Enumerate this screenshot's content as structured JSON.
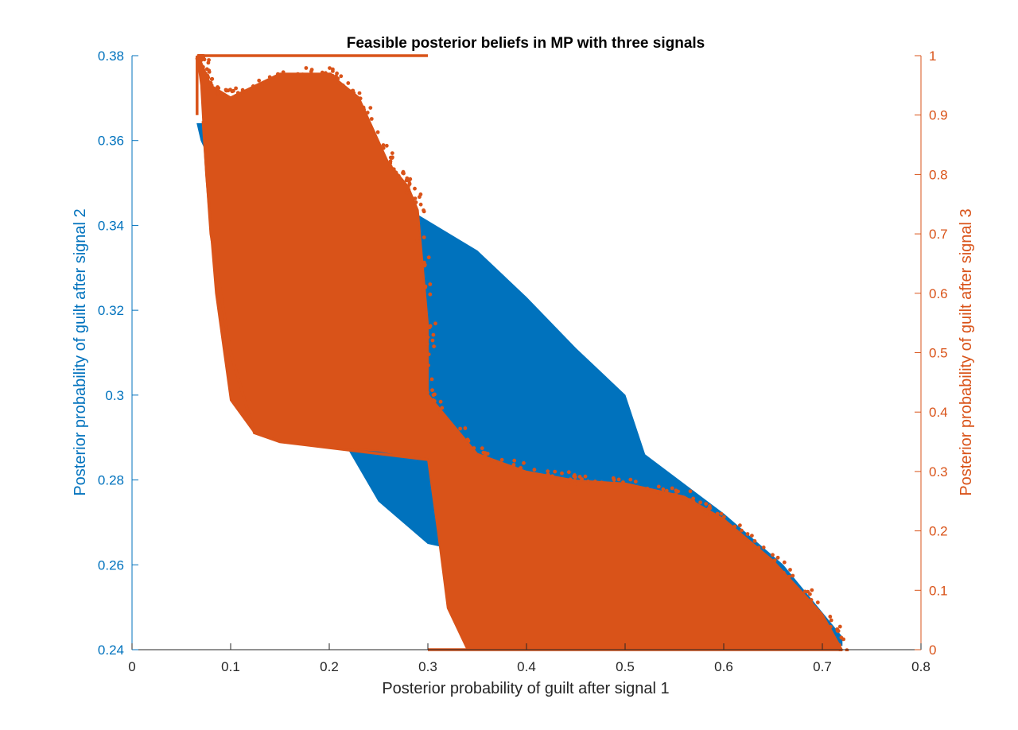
{
  "chart_data": {
    "type": "scatter",
    "title": "Feasible posterior beliefs in MP with three signals",
    "xlabel": "Posterior probability of guilt after signal 1",
    "ylabel_left": "Posterior probability of guilt after signal 2",
    "ylabel_right": "Posterior probability of guilt after signal 3",
    "xlim": [
      0,
      0.8
    ],
    "ylim_left": [
      0.24,
      0.38
    ],
    "ylim_right": [
      0,
      1
    ],
    "x_ticks": [
      "0",
      "0.1",
      "0.2",
      "0.3",
      "0.4",
      "0.5",
      "0.6",
      "0.7",
      "0.8"
    ],
    "y_left_ticks": [
      "0.24",
      "0.26",
      "0.28",
      "0.3",
      "0.32",
      "0.34",
      "0.36",
      "0.38"
    ],
    "y_right_ticks": [
      "0",
      "0.1",
      "0.2",
      "0.3",
      "0.4",
      "0.5",
      "0.6",
      "0.7",
      "0.8",
      "0.9",
      "1"
    ],
    "grid": false,
    "colors": {
      "series_left": "#0072BD",
      "series_right": "#D95319",
      "axis": "#262626"
    },
    "series": [
      {
        "axis": "left",
        "color": "#0072BD",
        "region_outline": [
          [
            0.066,
            0.364
          ],
          [
            0.12,
            0.364
          ],
          [
            0.2,
            0.355
          ],
          [
            0.3,
            0.341
          ],
          [
            0.35,
            0.334
          ],
          [
            0.4,
            0.323
          ],
          [
            0.45,
            0.311
          ],
          [
            0.5,
            0.3
          ],
          [
            0.52,
            0.286
          ],
          [
            0.6,
            0.272
          ],
          [
            0.66,
            0.26
          ],
          [
            0.72,
            0.243
          ],
          [
            0.72,
            0.241
          ],
          [
            0.65,
            0.245
          ],
          [
            0.6,
            0.249
          ],
          [
            0.55,
            0.252
          ],
          [
            0.5,
            0.255
          ],
          [
            0.45,
            0.258
          ],
          [
            0.4,
            0.26
          ],
          [
            0.3,
            0.265
          ],
          [
            0.25,
            0.275
          ],
          [
            0.2,
            0.295
          ],
          [
            0.15,
            0.322
          ],
          [
            0.1,
            0.345
          ],
          [
            0.07,
            0.36
          ]
        ]
      },
      {
        "axis": "right",
        "color": "#D95319",
        "upper_envelope": [
          [
            0.066,
            1
          ],
          [
            0.07,
            0.99
          ],
          [
            0.08,
            0.95
          ],
          [
            0.1,
            0.93
          ],
          [
            0.15,
            0.97
          ],
          [
            0.2,
            0.97
          ],
          [
            0.23,
            0.93
          ],
          [
            0.26,
            0.82
          ],
          [
            0.28,
            0.78
          ],
          [
            0.29,
            0.74
          ],
          [
            0.3,
            0.55
          ],
          [
            0.3,
            0.43
          ],
          [
            0.35,
            0.33
          ],
          [
            0.4,
            0.3
          ],
          [
            0.45,
            0.285
          ],
          [
            0.5,
            0.28
          ],
          [
            0.56,
            0.258
          ],
          [
            0.6,
            0.22
          ],
          [
            0.65,
            0.15
          ],
          [
            0.7,
            0.06
          ],
          [
            0.72,
            0
          ]
        ],
        "lower_envelope": [
          [
            0.72,
            0
          ],
          [
            0.6,
            0.0
          ],
          [
            0.4,
            0.0
          ],
          [
            0.34,
            0.0
          ],
          [
            0.32,
            0.07
          ],
          [
            0.31,
            0.2
          ],
          [
            0.3,
            0.32
          ],
          [
            0.25,
            0.335
          ],
          [
            0.2,
            0.34
          ],
          [
            0.15,
            0.35
          ],
          [
            0.124,
            0.365
          ],
          [
            0.1,
            0.42
          ],
          [
            0.085,
            0.6
          ],
          [
            0.075,
            0.8
          ],
          [
            0.07,
            0.95
          ]
        ],
        "boundary_lines": [
          [
            [
              0.066,
              1
            ],
            [
              0.3,
              1
            ]
          ],
          [
            [
              0.066,
              1
            ],
            [
              0.066,
              0.9
            ]
          ],
          [
            [
              0.3,
              0
            ],
            [
              0.72,
              0
            ]
          ],
          [
            [
              0.072,
              0.89
            ],
            [
              0.08,
              0.7
            ],
            [
              0.1,
              0.5
            ],
            [
              0.124,
              0.365
            ],
            [
              0.15,
              0.35
            ],
            [
              0.2,
              0.34
            ],
            [
              0.3,
              0.32
            ]
          ]
        ]
      }
    ]
  }
}
